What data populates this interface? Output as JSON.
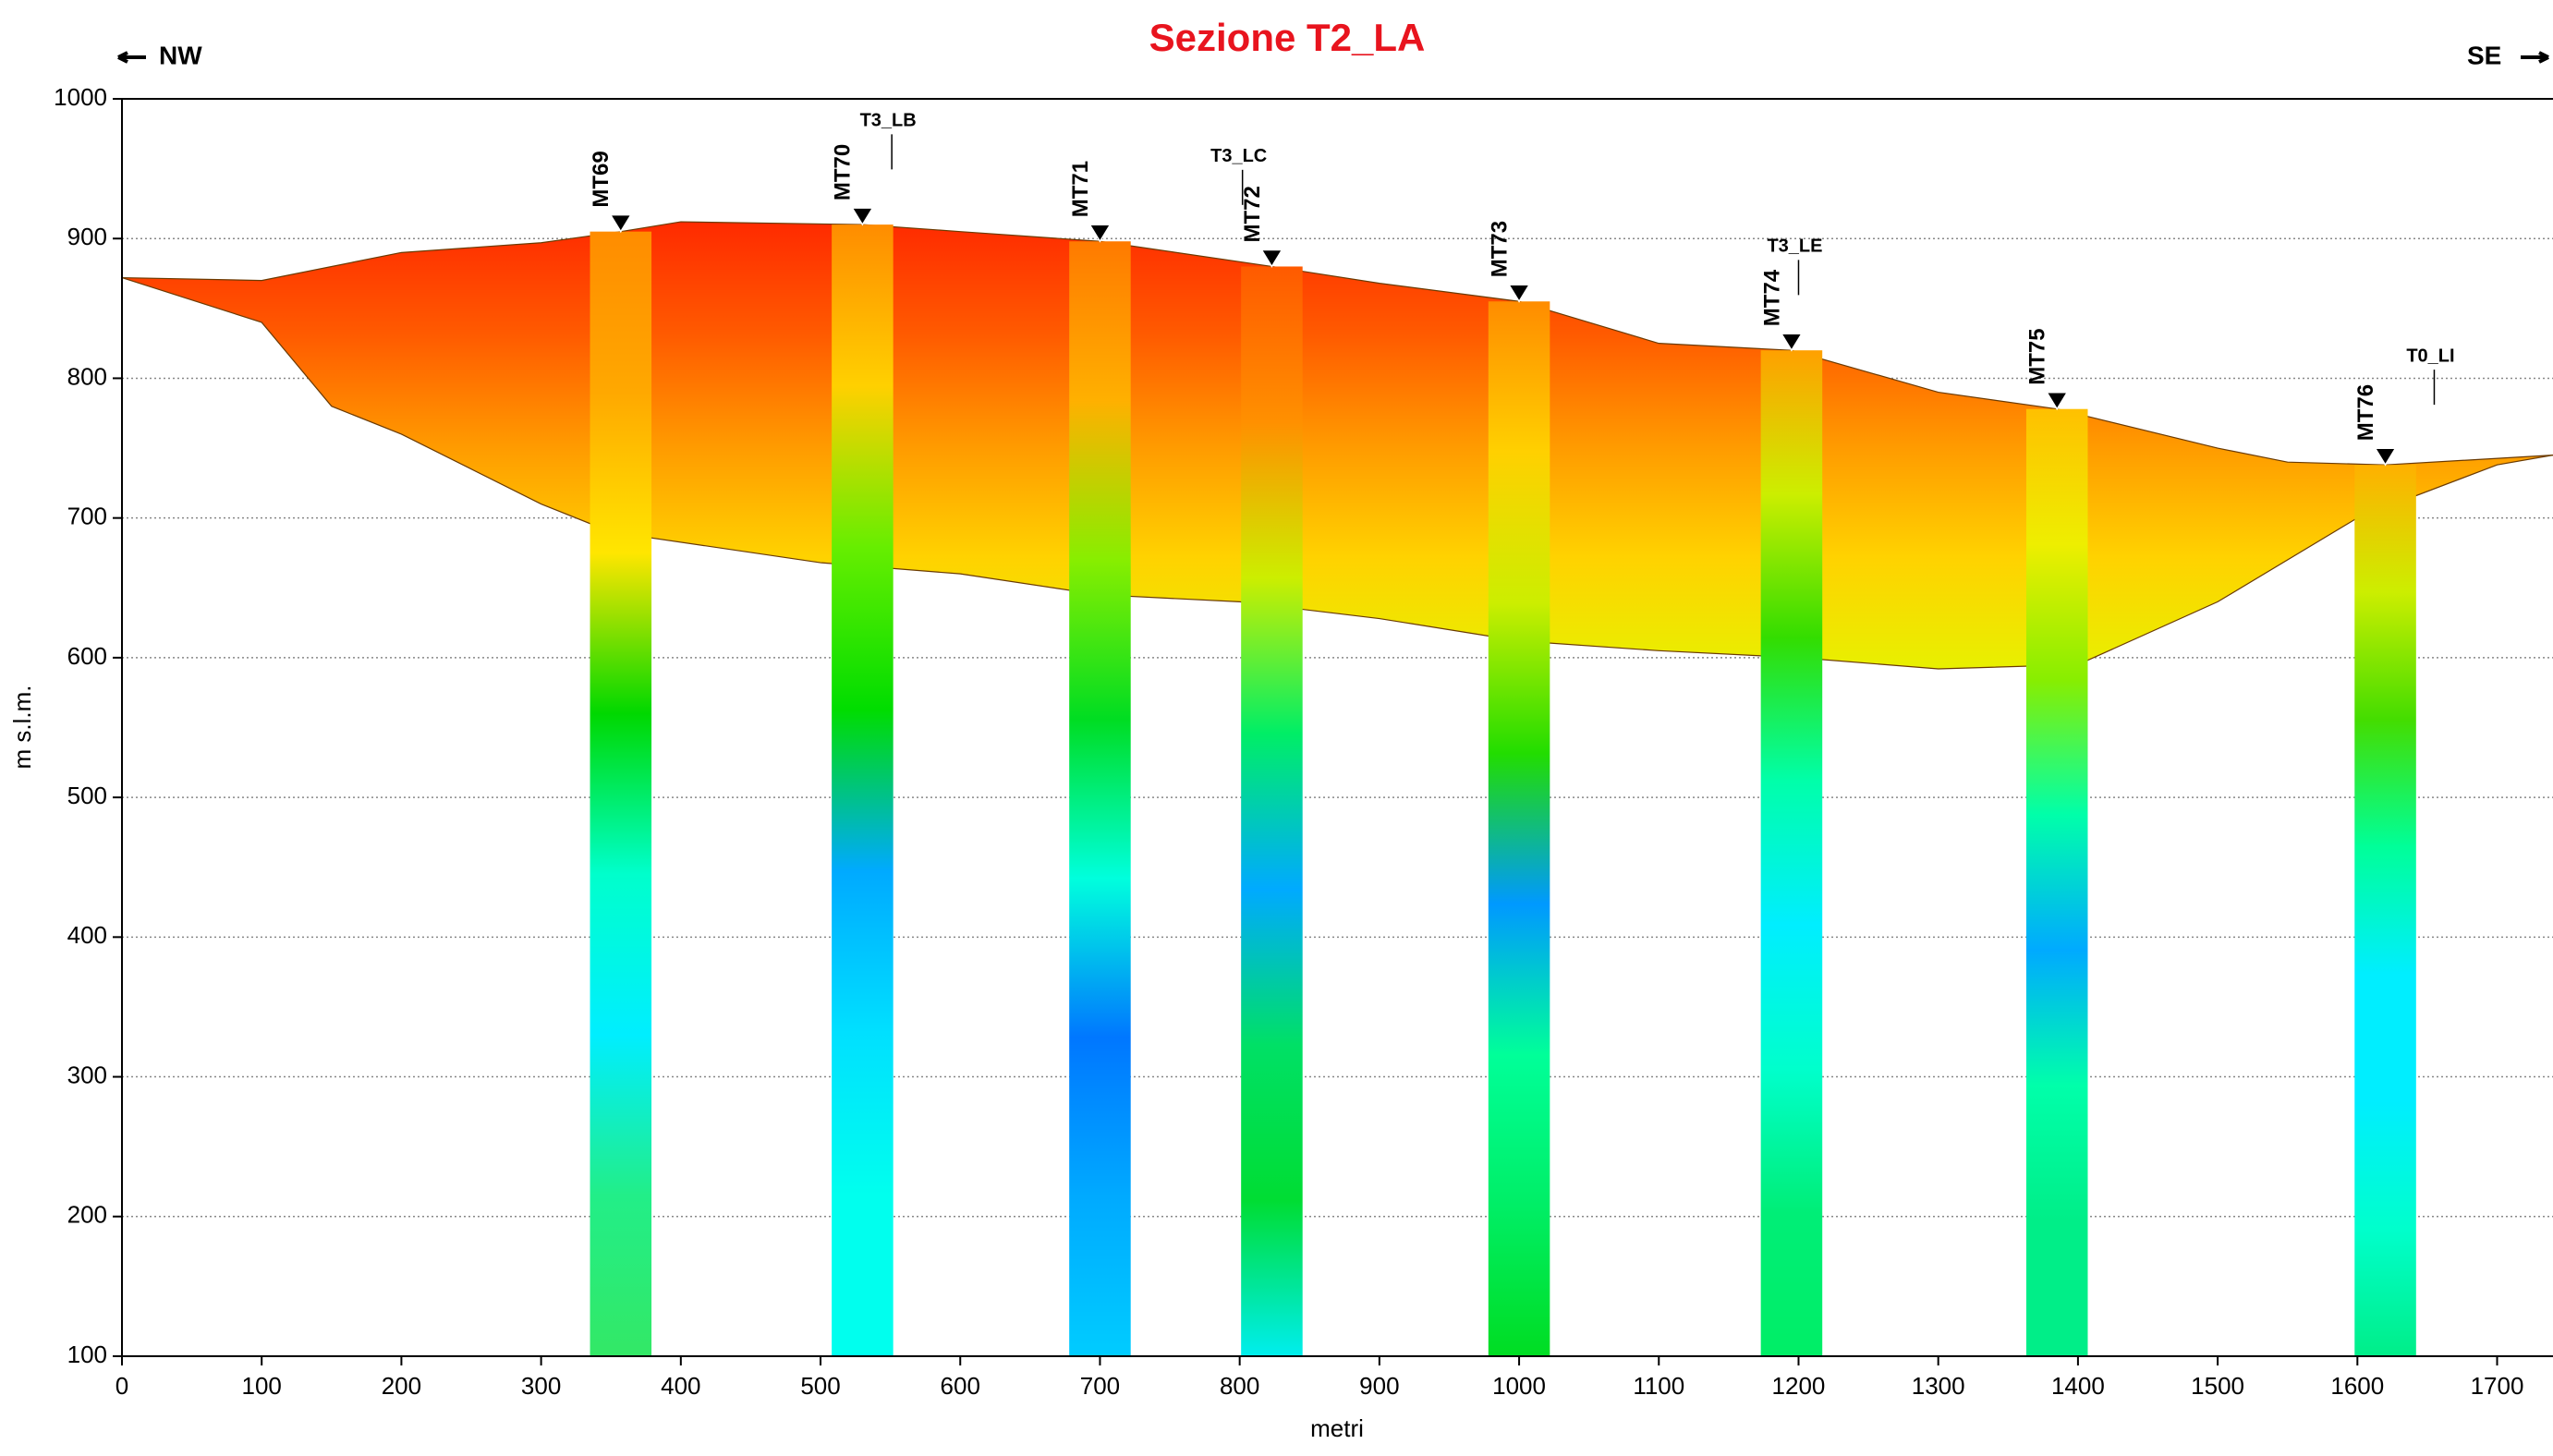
{
  "chart_data": {
    "type": "section",
    "title": "Sezione T2_LA",
    "left_label": "NW",
    "right_label": "SE",
    "xlabel": "metri",
    "ylabel": "m s.l.m.",
    "xlim": [
      0,
      1740
    ],
    "ylim": [
      100,
      1000
    ],
    "xticks": [
      0,
      100,
      200,
      300,
      400,
      500,
      600,
      700,
      800,
      900,
      1000,
      1100,
      1200,
      1300,
      1400,
      1500,
      1600,
      1700
    ],
    "yticks": [
      100,
      200,
      300,
      400,
      500,
      600,
      700,
      800,
      900,
      1000
    ],
    "grid": true,
    "section": {
      "colors": [
        "#ff2a00",
        "#ff5a00",
        "#ff9a00",
        "#ffd200",
        "#e8f000"
      ],
      "top": {
        "x": [
          0,
          100,
          200,
          300,
          357,
          400,
          530,
          600,
          700,
          823,
          900,
          1000,
          1100,
          1195,
          1300,
          1385,
          1500,
          1550,
          1620,
          1740
        ],
        "y": [
          872,
          870,
          890,
          897,
          905,
          912,
          910,
          905,
          898,
          880,
          868,
          855,
          825,
          820,
          790,
          778,
          750,
          740,
          738,
          745
        ]
      },
      "bottom": {
        "x": [
          0,
          100,
          150,
          200,
          300,
          350,
          500,
          600,
          700,
          800,
          900,
          1000,
          1100,
          1200,
          1300,
          1400,
          1500,
          1600,
          1700,
          1740
        ],
        "y": [
          872,
          840,
          780,
          760,
          710,
          690,
          668,
          660,
          645,
          640,
          628,
          612,
          605,
          600,
          592,
          595,
          640,
          700,
          738,
          745
        ]
      }
    },
    "stations": [
      {
        "name": "MT69",
        "x": 357,
        "elevation": 905,
        "colors": [
          "#ff8c00",
          "#ffa800",
          "#ffe600",
          "#00d800",
          "#00ffcc",
          "#00eeff",
          "#22ee88",
          "#33e866"
        ]
      },
      {
        "name": "MT70",
        "x": 530,
        "elevation": 910,
        "colors": [
          "#ff8c00",
          "#ffd000",
          "#66ee00",
          "#00dd00",
          "#00aaff",
          "#00e0ff",
          "#00ffee",
          "#00ffee"
        ]
      },
      {
        "name": "MT71",
        "x": 700,
        "elevation": 898,
        "colors": [
          "#ff7a00",
          "#ffb000",
          "#88ee00",
          "#00dd22",
          "#00ffdd",
          "#0077ff",
          "#00aaff",
          "#00ccff"
        ]
      },
      {
        "name": "MT72",
        "x": 823,
        "elevation": 880,
        "colors": [
          "#ff5a00",
          "#ff9000",
          "#ccee00",
          "#00ee66",
          "#00aaff",
          "#00e066",
          "#00dd33",
          "#00eeee"
        ]
      },
      {
        "name": "MT73",
        "x": 1000,
        "elevation": 855,
        "colors": [
          "#ff8c00",
          "#ffd000",
          "#ccee00",
          "#22dd00",
          "#0099ff",
          "#00ff99",
          "#00ee66",
          "#00dd22"
        ]
      },
      {
        "name": "MT74",
        "x": 1195,
        "elevation": 820,
        "colors": [
          "#ffa000",
          "#ccee00",
          "#33dd00",
          "#00ffaa",
          "#00eeff",
          "#00ffcc",
          "#00ee77",
          "#00ee66"
        ]
      },
      {
        "name": "MT75",
        "x": 1385,
        "elevation": 778,
        "colors": [
          "#ffc000",
          "#eeee00",
          "#88ee00",
          "#00ffaa",
          "#00aaff",
          "#00ffaa",
          "#00ee88",
          "#00ee88"
        ]
      },
      {
        "name": "MT76",
        "x": 1620,
        "elevation": 738,
        "colors": [
          "#ffb000",
          "#ccee00",
          "#44dd00",
          "#00ff99",
          "#00eeff",
          "#00eeff",
          "#00ffcc",
          "#00ee88"
        ]
      }
    ],
    "profiles": [
      {
        "name": "T3_LB",
        "x": 551
      },
      {
        "name": "T3_LC",
        "x": 802
      },
      {
        "name": "T3_LE",
        "x": 1200
      },
      {
        "name": "T0_LI",
        "x": 1655
      }
    ]
  }
}
